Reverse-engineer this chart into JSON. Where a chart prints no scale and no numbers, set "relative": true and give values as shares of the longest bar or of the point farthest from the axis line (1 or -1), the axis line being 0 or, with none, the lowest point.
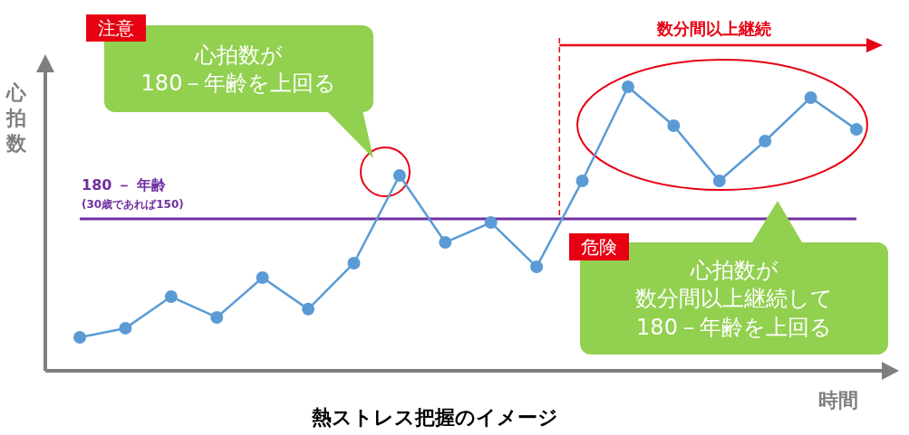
{
  "chart_data": {
    "type": "line",
    "relative": true,
    "title": "熱ストレス把握のイメージ",
    "xlabel": "時間",
    "ylabel": "心拍数",
    "categories": [
      null,
      null,
      null,
      null,
      null,
      null,
      null,
      null,
      null,
      null,
      null,
      null,
      null,
      null,
      null,
      null,
      null,
      null
    ],
    "series": [
      {
        "color": "#5b9bd5",
        "values": [
          0.118,
          0.15,
          0.261,
          0.188,
          0.328,
          0.217,
          0.379,
          0.688,
          0.452,
          0.522,
          0.366,
          0.669,
          1,
          0.863,
          0.669,
          0.809,
          0.962,
          0.85
        ]
      }
    ],
    "marker": "circle",
    "line_style": "solid",
    "ref_lines": [
      {
        "axis": "y",
        "value": 0.535,
        "label": "180 － 年齢\n(30歳であれば150)",
        "color": "#7030a0"
      }
    ],
    "annotations": [
      "注意",
      "心拍数が",
      "180－年齢を上回る",
      "危険",
      "心拍数が",
      "数分間以上継続して",
      "180－年齢を上回る",
      "数分間以上継続"
    ]
  }
}
